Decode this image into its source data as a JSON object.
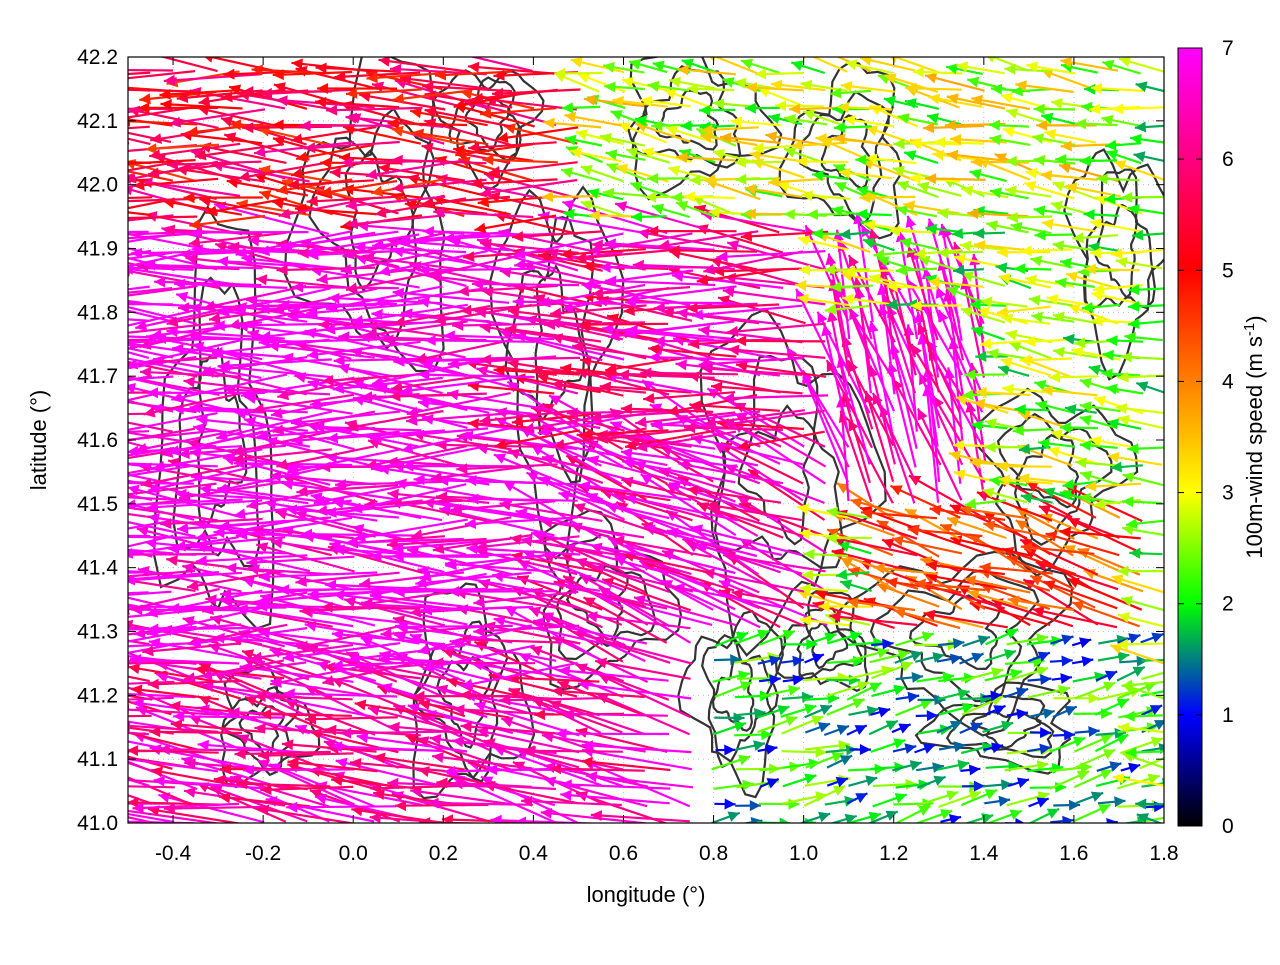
{
  "chart_data": {
    "type": "vector-field",
    "xlabel": "longitude (°)",
    "ylabel": "latitude (°)",
    "xlim": [
      -0.5,
      1.8
    ],
    "ylim": [
      41.0,
      42.2
    ],
    "x_ticks": [
      "-0.4",
      "-0.2",
      "0.0",
      "0.2",
      "0.4",
      "0.6",
      "0.8",
      "1.0",
      "1.2",
      "1.4",
      "1.6",
      "1.8"
    ],
    "x_tick_values": [
      -0.4,
      -0.2,
      0.0,
      0.2,
      0.4,
      0.6,
      0.8,
      1.0,
      1.2,
      1.4,
      1.6,
      1.8
    ],
    "y_ticks": [
      "41.0",
      "41.1",
      "41.2",
      "41.3",
      "41.4",
      "41.5",
      "41.6",
      "41.7",
      "41.8",
      "41.9",
      "42.0",
      "42.1",
      "42.2"
    ],
    "y_tick_values": [
      41.0,
      41.1,
      41.2,
      41.3,
      41.4,
      41.5,
      41.6,
      41.7,
      41.8,
      41.9,
      42.0,
      42.1,
      42.2
    ],
    "grid": true,
    "colorbar": {
      "label": "100m-wind speed (m s",
      "label_sup": "-1",
      "label_end": ")",
      "range": [
        0,
        7
      ],
      "ticks": [
        "0",
        "1",
        "2",
        "3",
        "4",
        "5",
        "6",
        "7"
      ],
      "tick_values": [
        0,
        1,
        2,
        3,
        4,
        5,
        6,
        7
      ],
      "colors": [
        "#000000",
        "#0000ff",
        "#00ff00",
        "#ffff00",
        "#ff8000",
        "#ff0000",
        "#ff00ff"
      ]
    },
    "contour_color": "#333333",
    "vector_regions": [
      {
        "lon": [
          -0.5,
          0.6
        ],
        "lat": [
          41.25,
          41.95
        ],
        "u": -1.0,
        "v": 0.02,
        "speed": 7.0
      },
      {
        "lon": [
          0.4,
          1.1
        ],
        "lat": [
          41.6,
          41.95
        ],
        "u": -1.0,
        "v": 0.05,
        "speed": 6.2
      },
      {
        "lon": [
          -0.5,
          0.5
        ],
        "lat": [
          41.95,
          42.2
        ],
        "u": -1.0,
        "v": 0.05,
        "speed": 5.4
      },
      {
        "lon": [
          0.5,
          1.8
        ],
        "lat": [
          41.95,
          42.2
        ],
        "u": -0.6,
        "v": 0.1,
        "speed": 2.8
      },
      {
        "lon": [
          0.5,
          1.1
        ],
        "lat": [
          41.25,
          41.6
        ],
        "u": -0.9,
        "v": 0.35,
        "speed": 6.6
      },
      {
        "lon": [
          1.1,
          1.45
        ],
        "lat": [
          41.5,
          41.8
        ],
        "u": -0.3,
        "v": 0.9,
        "speed": 6.8
      },
      {
        "lon": [
          1.45,
          1.8
        ],
        "lat": [
          41.5,
          41.9
        ],
        "u": -0.8,
        "v": 0.1,
        "speed": 2.6
      },
      {
        "lon": [
          1.2,
          1.8
        ],
        "lat": [
          41.3,
          41.5
        ],
        "u": -0.9,
        "v": 0.3,
        "speed": 4.6
      },
      {
        "lon": [
          -0.5,
          0.8
        ],
        "lat": [
          41.0,
          41.25
        ],
        "u": -0.95,
        "v": 0.2,
        "speed": 6.4
      },
      {
        "lon": [
          0.8,
          1.8
        ],
        "lat": [
          41.0,
          41.3
        ],
        "u": 0.9,
        "v": 0.2,
        "speed": 1.8
      }
    ]
  }
}
